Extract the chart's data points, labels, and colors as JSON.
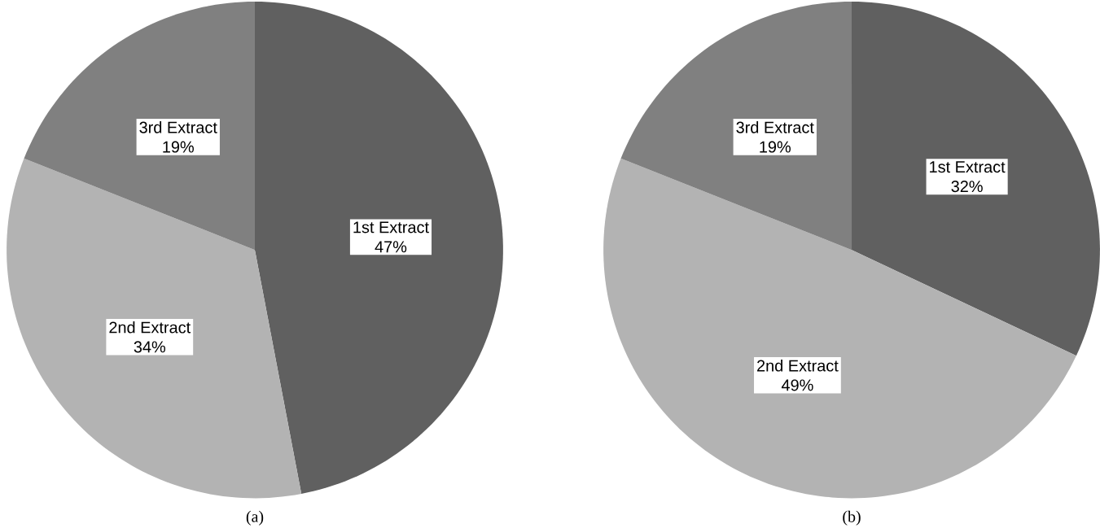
{
  "chart_data": [
    {
      "type": "pie",
      "categories": [
        "1st Extract",
        "2nd Extract",
        "3rd Extract"
      ],
      "values": [
        47,
        34,
        19
      ],
      "value_labels": [
        "47%",
        "34%",
        "19%"
      ],
      "colors": [
        "#606060",
        "#b3b3b3",
        "#808080"
      ],
      "annotations": [
        "(a)"
      ]
    },
    {
      "type": "pie",
      "categories": [
        "1st Extract",
        "2nd Extract",
        "3rd Extract"
      ],
      "values": [
        32,
        49,
        19
      ],
      "value_labels": [
        "32%",
        "49%",
        "19%"
      ],
      "colors": [
        "#606060",
        "#b3b3b3",
        "#808080"
      ],
      "annotations": [
        "(b)"
      ]
    }
  ]
}
